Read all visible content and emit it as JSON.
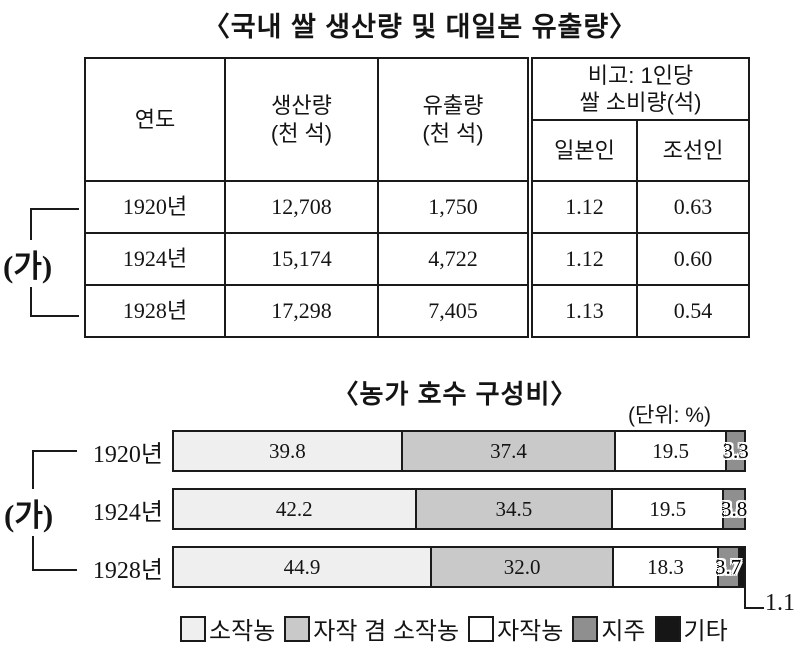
{
  "table_section": {
    "title": "〈국내 쌀 생산량 및 대일본 유출량〉",
    "group_label": "(가)",
    "columns": {
      "year": "연도",
      "production_line1": "생산량",
      "production_line2": "(천 석)",
      "outflow_line1": "유출량",
      "outflow_line2": "(천 석)",
      "note_line1": "비고: 1인당",
      "note_line2": "쌀 소비량(석)",
      "japanese": "일본인",
      "korean": "조선인"
    },
    "rows": [
      {
        "year": "1920년",
        "production": "12,708",
        "outflow": "1,750",
        "japanese": "1.12",
        "korean": "0.63"
      },
      {
        "year": "1924년",
        "production": "15,174",
        "outflow": "4,722",
        "japanese": "1.12",
        "korean": "0.60"
      },
      {
        "year": "1928년",
        "production": "17,298",
        "outflow": "7,405",
        "japanese": "1.13",
        "korean": "0.54"
      }
    ]
  },
  "chart_section": {
    "title": "〈농가 호수 구성비〉",
    "unit_label": "(단위: %)",
    "group_label": "(가)",
    "callout_value": "1.1"
  },
  "chart_data": {
    "type": "bar",
    "orientation": "horizontal",
    "stacked": true,
    "title": "농가 호수 구성비",
    "unit": "%",
    "xlim": [
      0,
      100
    ],
    "categories": [
      "1920년",
      "1924년",
      "1928년"
    ],
    "series": [
      {
        "name": "소작농",
        "color": "#efefef",
        "text_halo": false,
        "values": [
          39.8,
          42.2,
          44.9
        ]
      },
      {
        "name": "자작 겸 소작농",
        "color": "#c9c9c9",
        "text_halo": false,
        "values": [
          37.4,
          34.5,
          32.0
        ]
      },
      {
        "name": "자작농",
        "color": "#ffffff",
        "text_halo": false,
        "values": [
          19.5,
          19.5,
          18.3
        ]
      },
      {
        "name": "지주",
        "color": "#8f8f8f",
        "text_halo": true,
        "values": [
          3.3,
          3.8,
          3.7
        ]
      },
      {
        "name": "기타",
        "color": "#161616",
        "text_halo": false,
        "values": [
          0,
          0,
          1.1
        ]
      }
    ],
    "value_labels": [
      [
        "39.8",
        "37.4",
        "19.5",
        "3.3",
        ""
      ],
      [
        "42.2",
        "34.5",
        "19.5",
        "3.8",
        ""
      ],
      [
        "44.9",
        "32.0",
        "18.3",
        "3.7",
        ""
      ]
    ],
    "legend_position": "bottom"
  }
}
